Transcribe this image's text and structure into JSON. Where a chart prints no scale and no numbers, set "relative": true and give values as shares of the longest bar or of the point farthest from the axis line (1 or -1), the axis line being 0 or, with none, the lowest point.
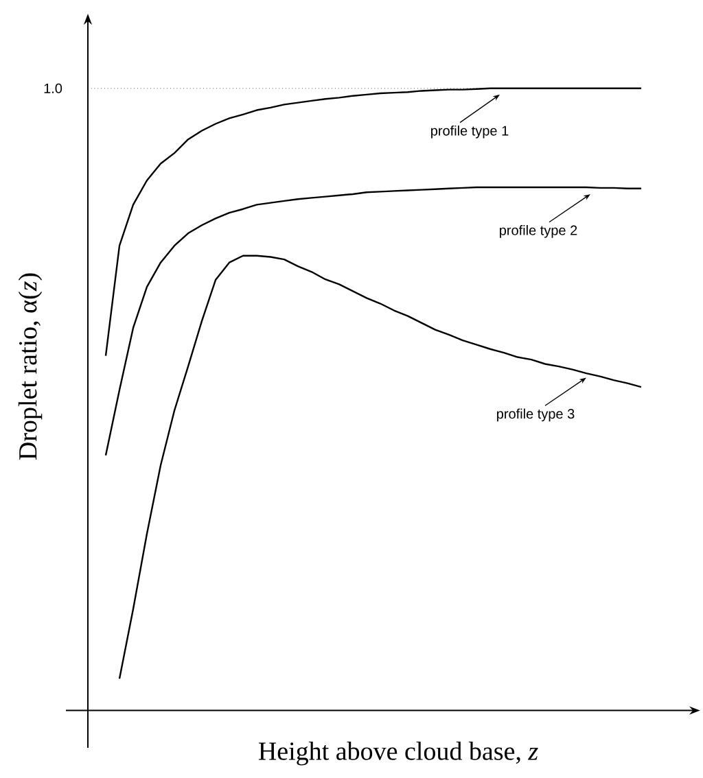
{
  "chart_data": {
    "type": "line",
    "relative": true,
    "marker": "none",
    "legend": "right",
    "xlabel": "Height above cloud base, *z*",
    "ylabel": "Droplet ratio, α(*z*)",
    "categories": [
      null,
      null,
      null,
      null,
      null,
      null,
      null,
      null,
      null,
      null,
      null,
      null,
      null,
      null,
      null,
      null,
      null,
      null,
      null,
      null,
      null,
      null,
      null,
      null,
      null,
      null,
      null,
      null,
      null,
      null,
      null,
      null,
      null,
      null,
      null,
      null,
      null,
      null,
      null,
      null
    ],
    "series": [
      {
        "name": "profile type 1",
        "color": "#000000",
        "values": [
          0.57,
          0.747,
          0.813,
          0.852,
          0.879,
          0.896,
          0.918,
          0.932,
          0.943,
          0.952,
          0.958,
          0.965,
          0.969,
          0.974,
          0.977,
          0.98,
          0.983,
          0.985,
          0.988,
          0.99,
          0.992,
          0.993,
          0.994,
          0.996,
          0.997,
          0.998,
          0.998,
          0.999,
          1.0,
          1.0,
          1.0,
          1.0,
          1.0,
          1.0,
          1.0,
          1.0,
          1.0,
          1.0,
          1.0,
          1.0
        ]
      },
      {
        "name": "profile type 2",
        "color": "#000000",
        "values": [
          0.41,
          0.515,
          0.615,
          0.681,
          0.72,
          0.747,
          0.767,
          0.78,
          0.791,
          0.8,
          0.806,
          0.813,
          0.816,
          0.819,
          0.822,
          0.824,
          0.826,
          0.828,
          0.83,
          0.833,
          0.834,
          0.835,
          0.836,
          0.837,
          0.838,
          0.839,
          0.84,
          0.841,
          0.841,
          0.841,
          0.841,
          0.841,
          0.841,
          0.841,
          0.841,
          0.841,
          0.84,
          0.84,
          0.839,
          0.839
        ]
      },
      {
        "name": "profile type 3",
        "color": "#000000",
        "values": [
          null,
          0.051,
          0.163,
          0.284,
          0.394,
          0.482,
          0.553,
          0.626,
          0.692,
          0.72,
          0.731,
          0.731,
          0.729,
          0.725,
          0.714,
          0.705,
          0.693,
          0.685,
          0.674,
          0.663,
          0.654,
          0.643,
          0.634,
          0.623,
          0.612,
          0.604,
          0.595,
          0.588,
          0.581,
          0.575,
          0.568,
          0.564,
          0.557,
          0.553,
          0.548,
          0.542,
          0.537,
          0.531,
          0.526,
          0.52
        ]
      }
    ],
    "ref_lines": [
      {
        "axis": "y",
        "value": 1.0,
        "label": "1.0",
        "line_style": "dotted",
        "color": "#000000"
      }
    ]
  }
}
